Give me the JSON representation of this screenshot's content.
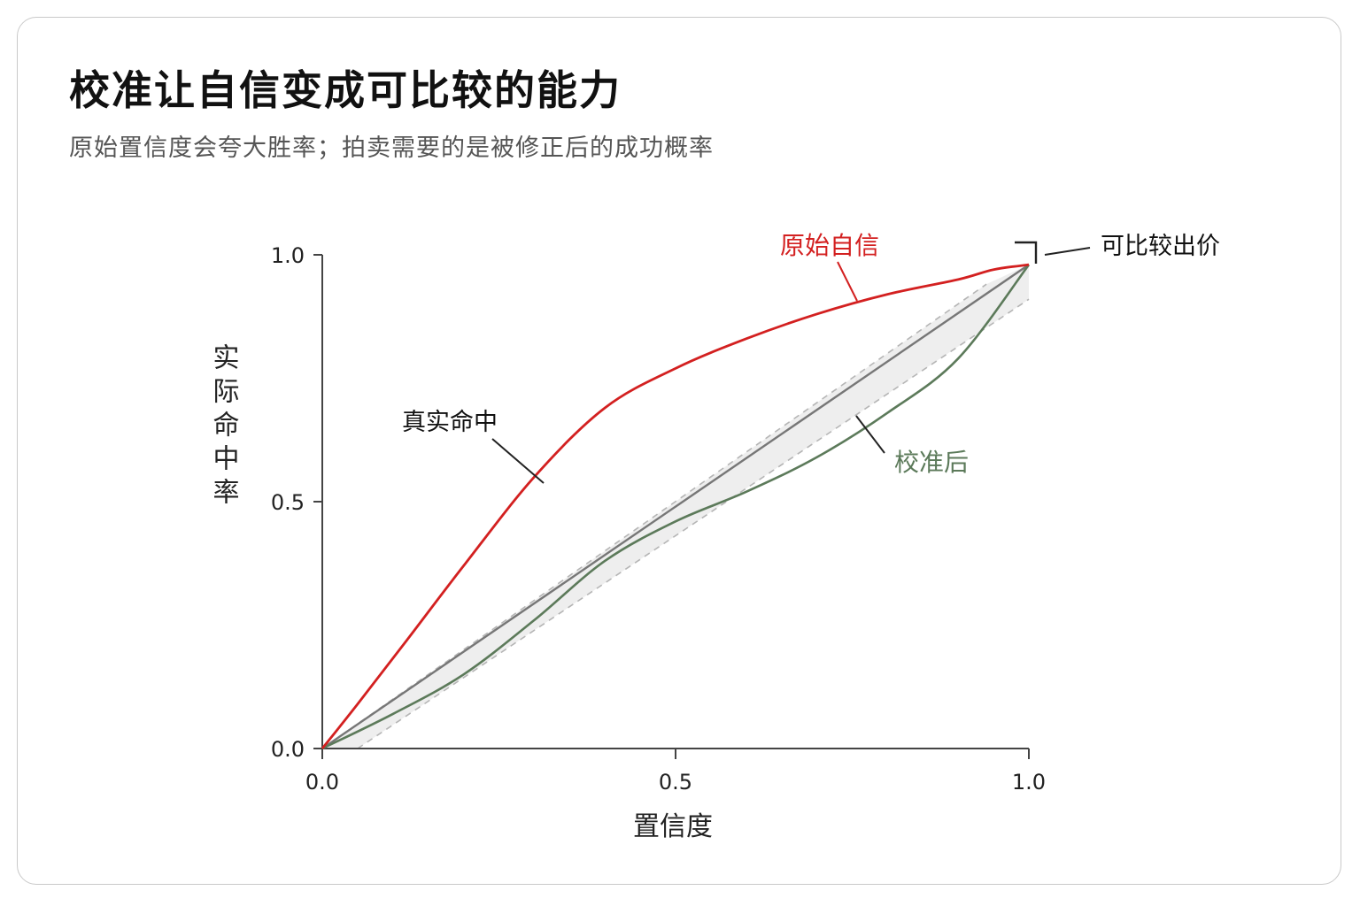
{
  "header": {
    "title": "校准让自信变成可比较的能力",
    "subtitle": "原始置信度会夸大胜率；拍卖需要的是被修正后的成功概率"
  },
  "chart_data": {
    "type": "line",
    "xlabel": "置信度",
    "ylabel": "实际命中率",
    "xlim": [
      0,
      1
    ],
    "ylim": [
      0,
      1
    ],
    "x_ticks": [
      "0.0",
      "0.5",
      "1.0"
    ],
    "y_ticks": [
      "0.0",
      "0.5",
      "1.0"
    ],
    "grid": false,
    "series": [
      {
        "name": "原始自信",
        "color": "#d32020",
        "points": [
          [
            0,
            0
          ],
          [
            0.05,
            0.09
          ],
          [
            0.12,
            0.22
          ],
          [
            0.2,
            0.37
          ],
          [
            0.3,
            0.55
          ],
          [
            0.4,
            0.69
          ],
          [
            0.5,
            0.77
          ],
          [
            0.6,
            0.83
          ],
          [
            0.7,
            0.88
          ],
          [
            0.8,
            0.92
          ],
          [
            0.9,
            0.95
          ],
          [
            0.95,
            0.97
          ],
          [
            1,
            0.98
          ]
        ]
      },
      {
        "name": "真实命中",
        "color": "#777777",
        "points": [
          [
            0,
            0
          ],
          [
            1,
            0.98
          ]
        ]
      },
      {
        "name": "校准后",
        "color": "#5c7a5a",
        "points": [
          [
            0,
            0
          ],
          [
            0.1,
            0.07
          ],
          [
            0.2,
            0.15
          ],
          [
            0.3,
            0.26
          ],
          [
            0.4,
            0.38
          ],
          [
            0.5,
            0.46
          ],
          [
            0.6,
            0.52
          ],
          [
            0.7,
            0.59
          ],
          [
            0.8,
            0.68
          ],
          [
            0.9,
            0.79
          ],
          [
            1,
            0.98
          ]
        ]
      }
    ],
    "band": {
      "upper": [
        [
          0,
          0
        ],
        [
          1,
          0.98
        ]
      ],
      "lower": [
        [
          0.05,
          0
        ],
        [
          1,
          0.91
        ]
      ],
      "upper_offset": 0.06,
      "color": "#eeeeee"
    },
    "annotations": [
      {
        "text": "原始自信",
        "color": "#d32020"
      },
      {
        "text": "真实命中",
        "color": "#111111"
      },
      {
        "text": "校准后",
        "color": "#5c7a5a"
      },
      {
        "text": "可比较出价",
        "color": "#111111"
      }
    ]
  }
}
